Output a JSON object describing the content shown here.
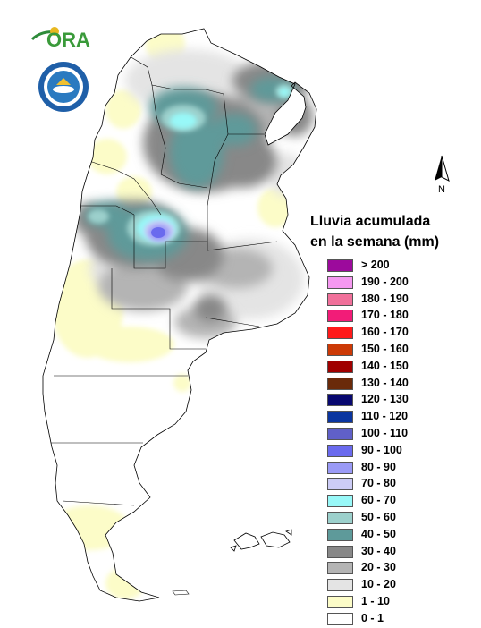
{
  "logo": {
    "text": "ORA"
  },
  "north_arrow": {
    "label": "N"
  },
  "legend": {
    "title_line1": "Lluvia acumulada",
    "title_line2": "en la semana (mm)",
    "items": [
      {
        "label": "> 200",
        "color": "#9c0a9c"
      },
      {
        "label": "190 - 200",
        "color": "#f598f0"
      },
      {
        "label": "180 - 190",
        "color": "#f0709a"
      },
      {
        "label": "170 - 180",
        "color": "#f21c78"
      },
      {
        "label": "160 - 170",
        "color": "#ff1a1a"
      },
      {
        "label": "150 - 160",
        "color": "#cc3a06"
      },
      {
        "label": "140 - 150",
        "color": "#a00000"
      },
      {
        "label": "130 - 140",
        "color": "#6a2a0a"
      },
      {
        "label": "120 - 130",
        "color": "#080870"
      },
      {
        "label": "110 - 120",
        "color": "#0a35a0"
      },
      {
        "label": "100 - 110",
        "color": "#6060c8"
      },
      {
        "label": "90 - 100",
        "color": "#6a6aee"
      },
      {
        "label": "80 - 90",
        "color": "#9a9af6"
      },
      {
        "label": "70 - 80",
        "color": "#ccccf6"
      },
      {
        "label": "60 - 70",
        "color": "#98f8f8"
      },
      {
        "label": "50 - 60",
        "color": "#9cd0cc"
      },
      {
        "label": "40 - 50",
        "color": "#5e9a9a"
      },
      {
        "label": "30 - 40",
        "color": "#888888"
      },
      {
        "label": "20 - 30",
        "color": "#b4b4b4"
      },
      {
        "label": "10 - 20",
        "color": "#e4e4e4"
      },
      {
        "label": "1 - 10",
        "color": "#fcfcc8"
      },
      {
        "label": "0 - 1",
        "color": "#ffffff"
      }
    ]
  }
}
